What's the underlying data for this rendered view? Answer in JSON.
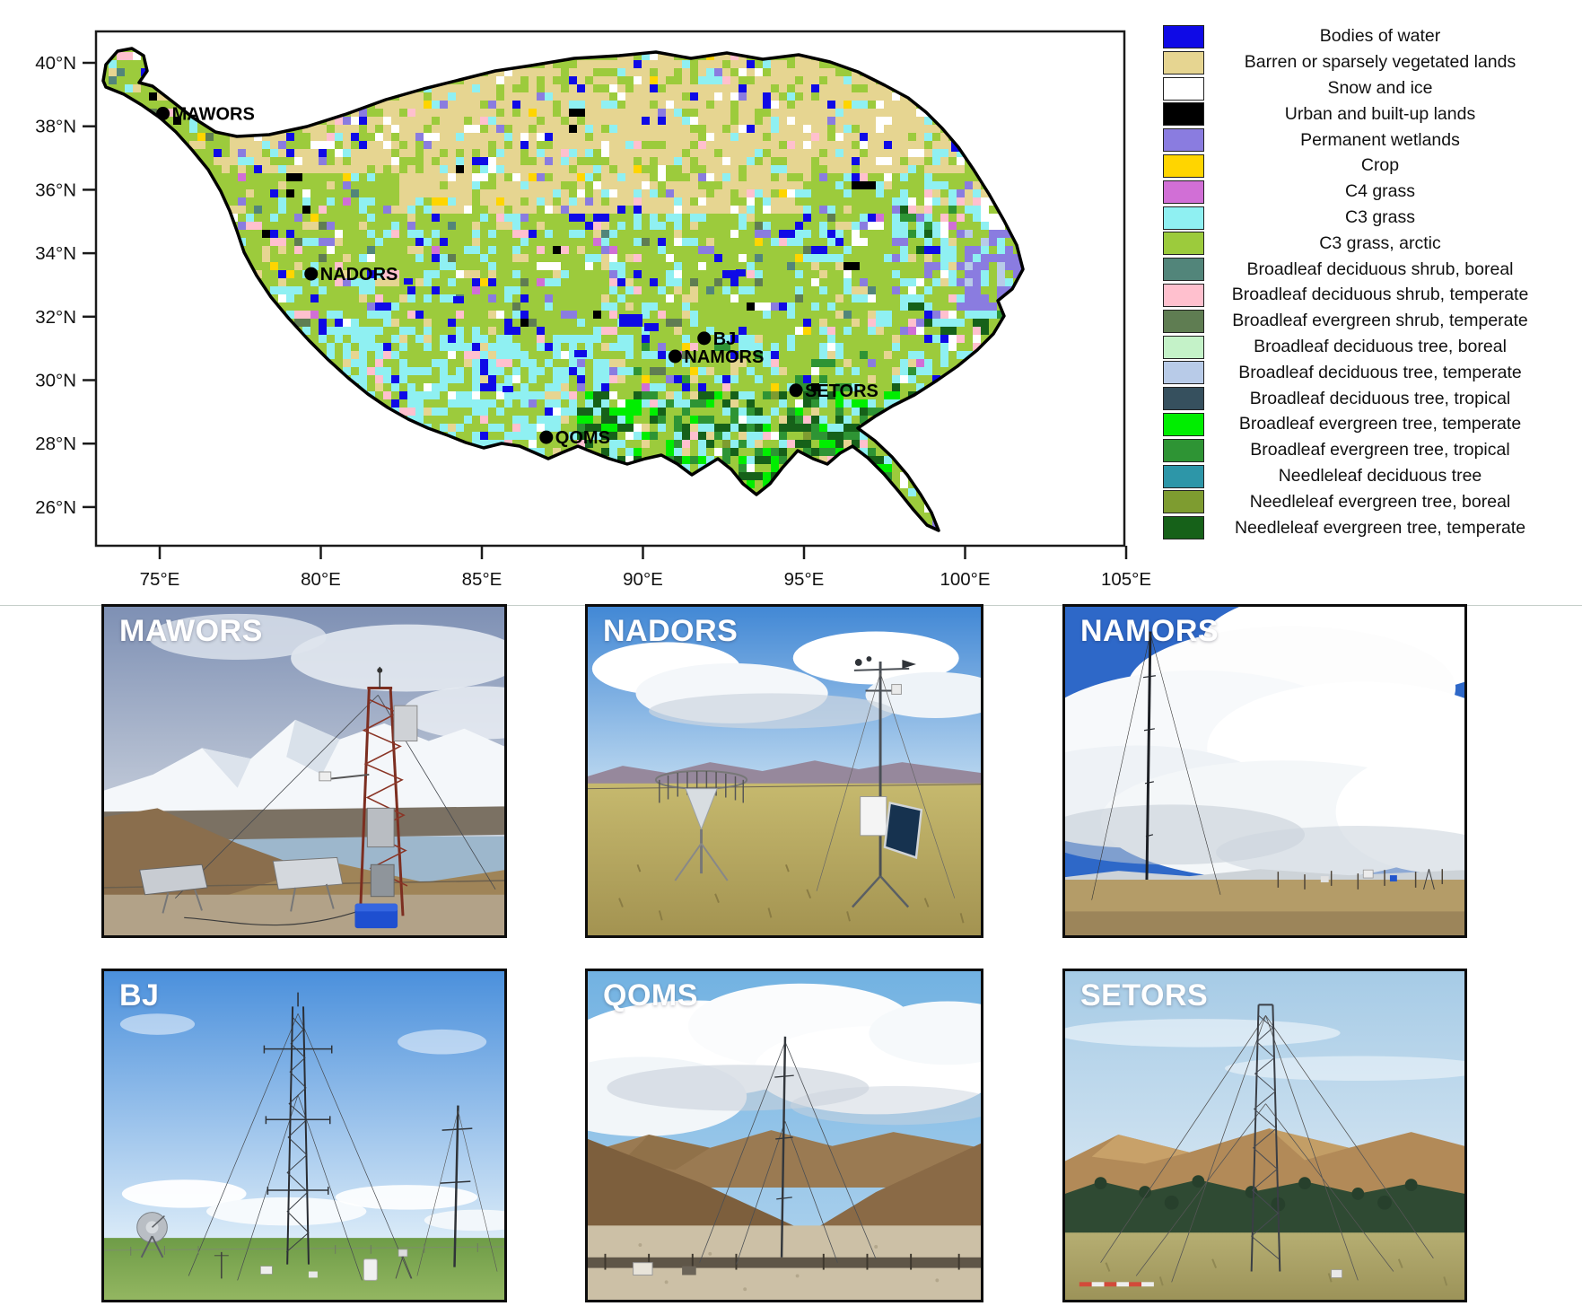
{
  "legend": {
    "items": [
      {
        "label": "Bodies of water",
        "color": "#0F0AE6"
      },
      {
        "label": "Barren or sparsely vegetated lands",
        "color": "#E6D591"
      },
      {
        "label": "Snow and ice",
        "color": "#FFFFFF"
      },
      {
        "label": "Urban and built-up lands",
        "color": "#000000"
      },
      {
        "label": "Permanent wetlands",
        "color": "#8A7CE0"
      },
      {
        "label": "Crop",
        "color": "#FFD500"
      },
      {
        "label": "C4 grass",
        "color": "#D16FD6"
      },
      {
        "label": "C3 grass",
        "color": "#8FF0F2"
      },
      {
        "label": "C3 grass, arctic",
        "color": "#9CCB3C"
      },
      {
        "label": "Broadleaf deciduous shrub, boreal",
        "color": "#52857A"
      },
      {
        "label": "Broadleaf deciduous shrub, temperate",
        "color": "#FFC0CE"
      },
      {
        "label": "Broadleaf evergreen shrub, temperate",
        "color": "#5F7D52"
      },
      {
        "label": "Broadleaf deciduous tree, boreal",
        "color": "#C4F2C8"
      },
      {
        "label": "Broadleaf deciduous tree, temperate",
        "color": "#B8CBE8"
      },
      {
        "label": "Broadleaf deciduous tree, tropical",
        "color": "#36505E"
      },
      {
        "label": "Broadleaf evergreen tree, temperate",
        "color": "#00EE00"
      },
      {
        "label": "Broadleaf evergreen tree, tropical",
        "color": "#2E9434"
      },
      {
        "label": "Needleleaf deciduous tree",
        "color": "#2D96A8"
      },
      {
        "label": "Needleleaf evergreen tree, boreal",
        "color": "#7E9C30"
      },
      {
        "label": "Needleleaf evergreen tree, temperate",
        "color": "#166119"
      }
    ]
  },
  "map": {
    "x_ticks": [
      {
        "label": "75°E",
        "lon": 75
      },
      {
        "label": "80°E",
        "lon": 80
      },
      {
        "label": "85°E",
        "lon": 85
      },
      {
        "label": "90°E",
        "lon": 90
      },
      {
        "label": "95°E",
        "lon": 95
      },
      {
        "label": "100°E",
        "lon": 100
      },
      {
        "label": "105°E",
        "lon": 105
      }
    ],
    "y_ticks": [
      {
        "label": "40°N",
        "lat": 40
      },
      {
        "label": "38°N",
        "lat": 38
      },
      {
        "label": "36°N",
        "lat": 36
      },
      {
        "label": "34°N",
        "lat": 34
      },
      {
        "label": "32°N",
        "lat": 32
      },
      {
        "label": "30°N",
        "lat": 30
      },
      {
        "label": "28°N",
        "lat": 28
      },
      {
        "label": "26°N",
        "lat": 26
      }
    ],
    "stations": [
      {
        "name": "MAWORS",
        "lat": 38.4,
        "lon": 75.1
      },
      {
        "name": "NADORS",
        "lat": 33.35,
        "lon": 79.7
      },
      {
        "name": "BJ",
        "lat": 31.32,
        "lon": 91.9
      },
      {
        "name": "NAMORS",
        "lat": 30.75,
        "lon": 91.0
      },
      {
        "name": "SETORS",
        "lat": 29.68,
        "lon": 94.75
      },
      {
        "name": "QOMS",
        "lat": 28.2,
        "lon": 87.0
      }
    ]
  },
  "photos": [
    {
      "label": "MAWORS"
    },
    {
      "label": "NADORS"
    },
    {
      "label": "NAMORS"
    },
    {
      "label": "BJ"
    },
    {
      "label": "QOMS"
    },
    {
      "label": "SETORS"
    }
  ]
}
